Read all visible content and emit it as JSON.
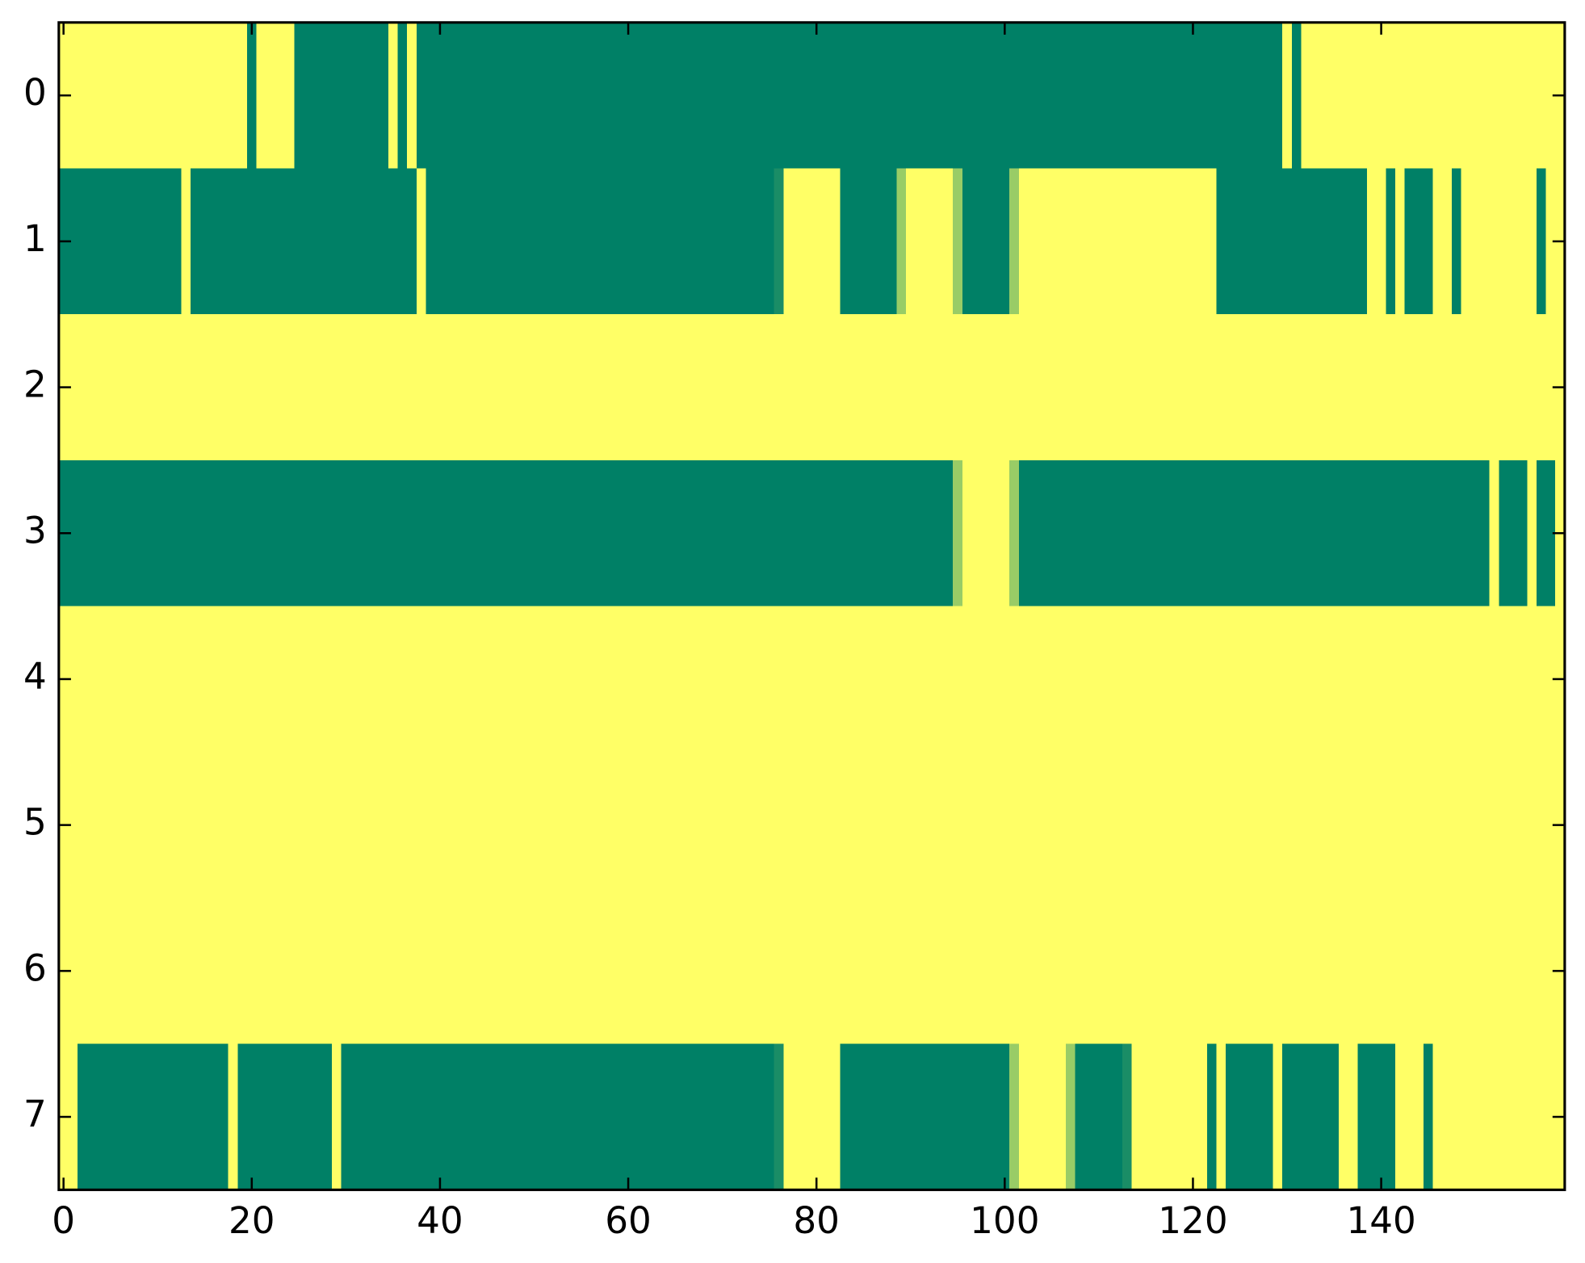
{
  "chart_data": {
    "type": "heatmap",
    "colormap": {
      "low": "#008066",
      "high": "#ffff66"
    },
    "xlim": [
      -0.5,
      159.5
    ],
    "ylim": [
      7.5,
      -0.5
    ],
    "xticks": [
      0,
      20,
      40,
      60,
      80,
      100,
      120,
      140
    ],
    "yticks": [
      0,
      1,
      2,
      3,
      4,
      5,
      6,
      7
    ],
    "z": [
      [
        1,
        1,
        1,
        1,
        1,
        1,
        1,
        1,
        1,
        1,
        1,
        1,
        1,
        1,
        1,
        1,
        1,
        1,
        1,
        1,
        0,
        1,
        1,
        1,
        1,
        0,
        0,
        0,
        0,
        0,
        0,
        0,
        0,
        0,
        0,
        1,
        0,
        1,
        0,
        0,
        0,
        0,
        0,
        0,
        0,
        0,
        0,
        0,
        0,
        0,
        0,
        0,
        0,
        0,
        0,
        0,
        0,
        0,
        0,
        0,
        0,
        0,
        0,
        0,
        0,
        0,
        0,
        0,
        0,
        0,
        0,
        0,
        0,
        0,
        0,
        0,
        0,
        0,
        0,
        0,
        0,
        0,
        0,
        0,
        0,
        0,
        0,
        0,
        0,
        0,
        0,
        0,
        0,
        0,
        0,
        0,
        0,
        0,
        0,
        0,
        0,
        0,
        0,
        0,
        0,
        0,
        0,
        0,
        0,
        0,
        0,
        0,
        0,
        0,
        0,
        0,
        0,
        0,
        0,
        0,
        0,
        0,
        0,
        0,
        0,
        0,
        0,
        0,
        0,
        0,
        1,
        0,
        1,
        1,
        1,
        1,
        1,
        1,
        1,
        1,
        1,
        1,
        1,
        1,
        1,
        1,
        1,
        1,
        1,
        1,
        1,
        1,
        1,
        1,
        1,
        1,
        1,
        1,
        1,
        1
      ],
      [
        0,
        0,
        0,
        0,
        0,
        0,
        0,
        0,
        0,
        0,
        0,
        0,
        0,
        1,
        0,
        0,
        0,
        0,
        0,
        0,
        0,
        0,
        0,
        0,
        0,
        0,
        0,
        0,
        0,
        0,
        0,
        0,
        0,
        0,
        0,
        0,
        0,
        0,
        1,
        0,
        0,
        0,
        0,
        0,
        0,
        0,
        0,
        0,
        0,
        0,
        0,
        0,
        0,
        0,
        0,
        0,
        0,
        0,
        0,
        0,
        0,
        0,
        0,
        0,
        0,
        0,
        0,
        0,
        0,
        0,
        0,
        0,
        0,
        0,
        0,
        0,
        0.1,
        1,
        1,
        1,
        1,
        1,
        1,
        0,
        0,
        0,
        0,
        0,
        0,
        0.6,
        1,
        1,
        1,
        1,
        1,
        0.6,
        0,
        0,
        0,
        0,
        0,
        0.6,
        1,
        1,
        1,
        1,
        1,
        1,
        1,
        1,
        1,
        1,
        1,
        1,
        1,
        1,
        1,
        1,
        1,
        1,
        1,
        1,
        1,
        0,
        0,
        0,
        0,
        0,
        0,
        0,
        0,
        0,
        0,
        0,
        0,
        0,
        0,
        0,
        0,
        1,
        1,
        0,
        1,
        0,
        0,
        0,
        1,
        1,
        0,
        1,
        1,
        1,
        1,
        1,
        1,
        1,
        1,
        0,
        1,
        1
      ],
      [
        1,
        1,
        1,
        1,
        1,
        1,
        1,
        1,
        1,
        1,
        1,
        1,
        1,
        1,
        1,
        1,
        1,
        1,
        1,
        1,
        1,
        1,
        1,
        1,
        1,
        1,
        1,
        1,
        1,
        1,
        1,
        1,
        1,
        1,
        1,
        1,
        1,
        1,
        1,
        1,
        1,
        1,
        1,
        1,
        1,
        1,
        1,
        1,
        1,
        1,
        1,
        1,
        1,
        1,
        1,
        1,
        1,
        1,
        1,
        1,
        1,
        1,
        1,
        1,
        1,
        1,
        1,
        1,
        1,
        1,
        1,
        1,
        1,
        1,
        1,
        1,
        1,
        1,
        1,
        1,
        1,
        1,
        1,
        1,
        1,
        1,
        1,
        1,
        1,
        1,
        1,
        1,
        1,
        1,
        1,
        1,
        1,
        1,
        1,
        1,
        1,
        1,
        1,
        1,
        1,
        1,
        1,
        1,
        1,
        1,
        1,
        1,
        1,
        1,
        1,
        1,
        1,
        1,
        1,
        1,
        1,
        1,
        1,
        1,
        1,
        1,
        1,
        1,
        1,
        1,
        1,
        1,
        1,
        1,
        1,
        1,
        1,
        1,
        1,
        1,
        1,
        1,
        1,
        1,
        1,
        1,
        1,
        1,
        1,
        1,
        1,
        1,
        1,
        1,
        1,
        1,
        1,
        1,
        1,
        1
      ],
      [
        0,
        0,
        0,
        0,
        0,
        0,
        0,
        0,
        0,
        0,
        0,
        0,
        0,
        0,
        0,
        0,
        0,
        0,
        0,
        0,
        0,
        0,
        0,
        0,
        0,
        0,
        0,
        0,
        0,
        0,
        0,
        0,
        0,
        0,
        0,
        0,
        0,
        0,
        0,
        0,
        0,
        0,
        0,
        0,
        0,
        0,
        0,
        0,
        0,
        0,
        0,
        0,
        0,
        0,
        0,
        0,
        0,
        0,
        0,
        0,
        0,
        0,
        0,
        0,
        0,
        0,
        0,
        0,
        0,
        0,
        0,
        0,
        0,
        0,
        0,
        0,
        0,
        0,
        0,
        0,
        0,
        0,
        0,
        0,
        0,
        0,
        0,
        0,
        0,
        0,
        0,
        0,
        0,
        0,
        0,
        0.6,
        1,
        1,
        1,
        1,
        1,
        0.6,
        0,
        0,
        0,
        0,
        0,
        0,
        0,
        0,
        0,
        0,
        0,
        0,
        0,
        0,
        0,
        0,
        0,
        0,
        0,
        0,
        0,
        0,
        0,
        0,
        0,
        0,
        0,
        0,
        0,
        0,
        0,
        0,
        0,
        0,
        0,
        0,
        0,
        0,
        0,
        0,
        0,
        0,
        0,
        0,
        0,
        0,
        0,
        0,
        0,
        0,
        1,
        0,
        0,
        0,
        1,
        0,
        0,
        1
      ],
      [
        1,
        1,
        1,
        1,
        1,
        1,
        1,
        1,
        1,
        1,
        1,
        1,
        1,
        1,
        1,
        1,
        1,
        1,
        1,
        1,
        1,
        1,
        1,
        1,
        1,
        1,
        1,
        1,
        1,
        1,
        1,
        1,
        1,
        1,
        1,
        1,
        1,
        1,
        1,
        1,
        1,
        1,
        1,
        1,
        1,
        1,
        1,
        1,
        1,
        1,
        1,
        1,
        1,
        1,
        1,
        1,
        1,
        1,
        1,
        1,
        1,
        1,
        1,
        1,
        1,
        1,
        1,
        1,
        1,
        1,
        1,
        1,
        1,
        1,
        1,
        1,
        1,
        1,
        1,
        1,
        1,
        1,
        1,
        1,
        1,
        1,
        1,
        1,
        1,
        1,
        1,
        1,
        1,
        1,
        1,
        1,
        1,
        1,
        1,
        1,
        1,
        1,
        1,
        1,
        1,
        1,
        1,
        1,
        1,
        1,
        1,
        1,
        1,
        1,
        1,
        1,
        1,
        1,
        1,
        1,
        1,
        1,
        1,
        1,
        1,
        1,
        1,
        1,
        1,
        1,
        1,
        1,
        1,
        1,
        1,
        1,
        1,
        1,
        1,
        1,
        1,
        1,
        1,
        1,
        1,
        1,
        1,
        1,
        1,
        1,
        1,
        1,
        1,
        1,
        1,
        1,
        1,
        1,
        1,
        1
      ],
      [
        1,
        1,
        1,
        1,
        1,
        1,
        1,
        1,
        1,
        1,
        1,
        1,
        1,
        1,
        1,
        1,
        1,
        1,
        1,
        1,
        1,
        1,
        1,
        1,
        1,
        1,
        1,
        1,
        1,
        1,
        1,
        1,
        1,
        1,
        1,
        1,
        1,
        1,
        1,
        1,
        1,
        1,
        1,
        1,
        1,
        1,
        1,
        1,
        1,
        1,
        1,
        1,
        1,
        1,
        1,
        1,
        1,
        1,
        1,
        1,
        1,
        1,
        1,
        1,
        1,
        1,
        1,
        1,
        1,
        1,
        1,
        1,
        1,
        1,
        1,
        1,
        1,
        1,
        1,
        1,
        1,
        1,
        1,
        1,
        1,
        1,
        1,
        1,
        1,
        1,
        1,
        1,
        1,
        1,
        1,
        1,
        1,
        1,
        1,
        1,
        1,
        1,
        1,
        1,
        1,
        1,
        1,
        1,
        1,
        1,
        1,
        1,
        1,
        1,
        1,
        1,
        1,
        1,
        1,
        1,
        1,
        1,
        1,
        1,
        1,
        1,
        1,
        1,
        1,
        1,
        1,
        1,
        1,
        1,
        1,
        1,
        1,
        1,
        1,
        1,
        1,
        1,
        1,
        1,
        1,
        1,
        1,
        1,
        1,
        1,
        1,
        1,
        1,
        1,
        1,
        1,
        1,
        1,
        1,
        1
      ],
      [
        1,
        1,
        1,
        1,
        1,
        1,
        1,
        1,
        1,
        1,
        1,
        1,
        1,
        1,
        1,
        1,
        1,
        1,
        1,
        1,
        1,
        1,
        1,
        1,
        1,
        1,
        1,
        1,
        1,
        1,
        1,
        1,
        1,
        1,
        1,
        1,
        1,
        1,
        1,
        1,
        1,
        1,
        1,
        1,
        1,
        1,
        1,
        1,
        1,
        1,
        1,
        1,
        1,
        1,
        1,
        1,
        1,
        1,
        1,
        1,
        1,
        1,
        1,
        1,
        1,
        1,
        1,
        1,
        1,
        1,
        1,
        1,
        1,
        1,
        1,
        1,
        1,
        1,
        1,
        1,
        1,
        1,
        1,
        1,
        1,
        1,
        1,
        1,
        1,
        1,
        1,
        1,
        1,
        1,
        1,
        1,
        1,
        1,
        1,
        1,
        1,
        1,
        1,
        1,
        1,
        1,
        1,
        1,
        1,
        1,
        1,
        1,
        1,
        1,
        1,
        1,
        1,
        1,
        1,
        1,
        1,
        1,
        1,
        1,
        1,
        1,
        1,
        1,
        1,
        1,
        1,
        1,
        1,
        1,
        1,
        1,
        1,
        1,
        1,
        1,
        1,
        1,
        1,
        1,
        1,
        1,
        1,
        1,
        1,
        1,
        1,
        1,
        1,
        1,
        1,
        1,
        1,
        1,
        1,
        1
      ],
      [
        1,
        1,
        0,
        0,
        0,
        0,
        0,
        0,
        0,
        0,
        0,
        0,
        0,
        0,
        0,
        0,
        0,
        0,
        1,
        0,
        0,
        0,
        0,
        0,
        0,
        0,
        0,
        0,
        0,
        1,
        0,
        0,
        0,
        0,
        0,
        0,
        0,
        0,
        0,
        0,
        0,
        0,
        0,
        0,
        0,
        0,
        0,
        0,
        0,
        0,
        0,
        0,
        0,
        0,
        0,
        0,
        0,
        0,
        0,
        0,
        0,
        0,
        0,
        0,
        0,
        0,
        0,
        0,
        0,
        0,
        0,
        0,
        0,
        0,
        0,
        0,
        0.1,
        1,
        1,
        1,
        1,
        1,
        1,
        0,
        0,
        0,
        0,
        0,
        0,
        0,
        0,
        0,
        0,
        0,
        0,
        0,
        0,
        0,
        0,
        0,
        0,
        0.6,
        1,
        1,
        1,
        1,
        1,
        0.6,
        0,
        0,
        0,
        0,
        0,
        0.1,
        1,
        1,
        1,
        1,
        1,
        1,
        1,
        1,
        0,
        1,
        0,
        0,
        0,
        0,
        0,
        1,
        0,
        0,
        0,
        0,
        0,
        0,
        1,
        1,
        0,
        0,
        0,
        0,
        1,
        1,
        1,
        0,
        1,
        1,
        1,
        1,
        1,
        1,
        1,
        1,
        1,
        1,
        1,
        1,
        1,
        1
      ]
    ]
  }
}
